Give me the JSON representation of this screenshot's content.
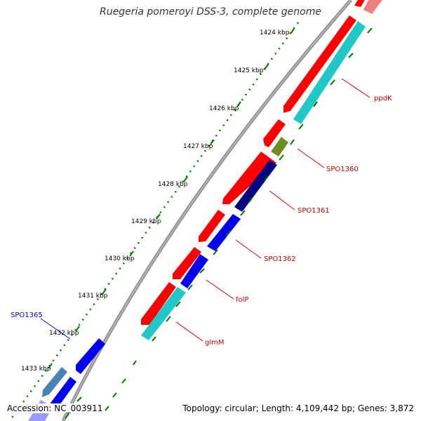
{
  "title": "Ruegeria pomeroyi DSS-3, complete genome",
  "accession": "Accession: NC_003911",
  "summary": "Topology: circular; Length: 4,109,442 bp; Genes: 3,872",
  "ruler": {
    "ticks": [
      "1424 kbp",
      "1425 kbp",
      "1426 kbp",
      "1427 kbp",
      "1428 kbp",
      "1429 kbp",
      "1430 kbp",
      "1431 kbp",
      "1432 kbp",
      "1433 kbp"
    ]
  },
  "genes": [
    {
      "name": "ppdK",
      "color": "#cc0000"
    },
    {
      "name": "SPO1360",
      "color": "#cc0000"
    },
    {
      "name": "SPO1361",
      "color": "#cc0000"
    },
    {
      "name": "SPO1362",
      "color": "#cc0000"
    },
    {
      "name": "folP",
      "color": "#cc0000"
    },
    {
      "name": "glmM",
      "color": "#cc0000"
    },
    {
      "name": "SPO1365",
      "color": "#0000cc"
    }
  ],
  "colors": {
    "cds_red": "#ff0000",
    "cds_blue": "#0000ee",
    "cds_navy": "#000080",
    "cds_olive": "#6b8e23",
    "cds_cyan": "#20c8c8",
    "gc_green": "#007700",
    "backbone": "#888888"
  }
}
